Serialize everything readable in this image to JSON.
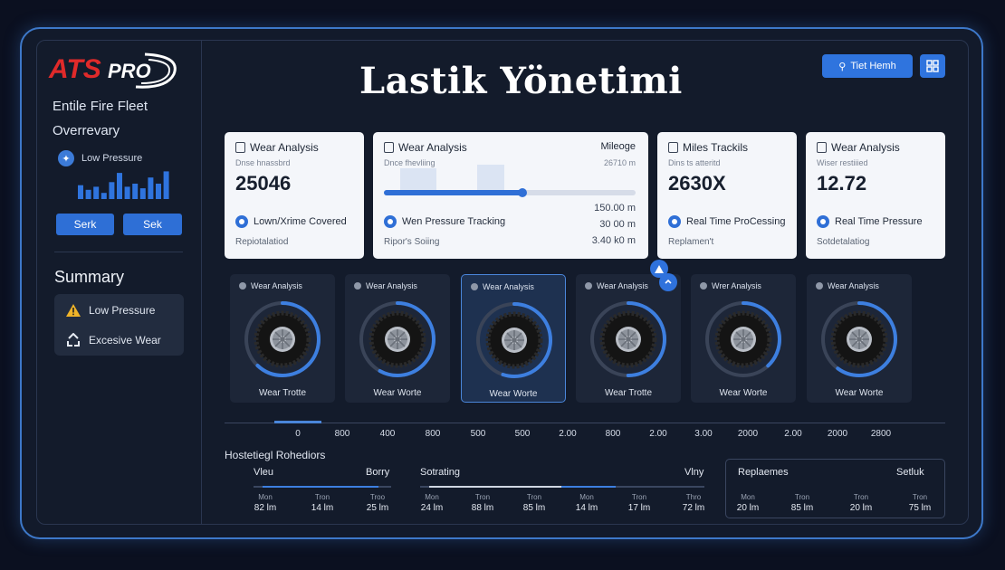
{
  "header": {
    "title": "Lastik Yönetimi",
    "search_button": "Tiet Hemh",
    "logo_text": "ATSPRO"
  },
  "sidebar": {
    "fleet_label": "Entile Fire Fleet",
    "overview_label": "Overrevary",
    "low_pressure_label": "Low Pressure",
    "mini_chart": [
      0.45,
      0.3,
      0.4,
      0.2,
      0.55,
      0.85,
      0.4,
      0.5,
      0.35,
      0.7,
      0.5,
      0.9
    ],
    "button_left": "Serk",
    "button_right": "Sek",
    "summary_title": "Summary",
    "summary_items": [
      "Low Pressure",
      "Excesive Wear"
    ]
  },
  "cards": [
    {
      "title": "Wear Analysis",
      "sub": "Dnse hnassbrd",
      "value": "25046",
      "feature": "Lown/Xrime Covered",
      "foot": "Repiotalatiod"
    },
    {
      "title": "Wear Analysis",
      "right_title": "Mileoge",
      "sub": "Dnce fhevliing",
      "right_sub": "26710 m",
      "feature": "Wen Pressure Tracking",
      "foot": "Ripor's Soiing",
      "values": [
        "150.00 m",
        "30 00 m",
        "3.40 k0 m"
      ],
      "progress": 0.55
    },
    {
      "title": "Miles Trackils",
      "sub": "Dins ts atteritd",
      "value": "2630X",
      "feature": "Real Time ProCessing",
      "foot": "Replamen't"
    },
    {
      "title": "Wear Analysis",
      "sub": "Wiser restiiied",
      "value": "12.72",
      "feature": "Real Time Pressure",
      "foot": "Sotdetalatiog"
    }
  ],
  "tires": [
    {
      "title": "Wear Analysis",
      "foot": "Wear Trotte",
      "level": 0.62
    },
    {
      "title": "Wear Analysis",
      "foot": "Wear Worte",
      "level": 0.58
    },
    {
      "title": "Wear Analysis",
      "foot": "Wear Worte",
      "level": 0.55
    },
    {
      "title": "Wear Analysis",
      "foot": "Wear Trotte",
      "level": 0.5
    },
    {
      "title": "Wrer Analysis",
      "foot": "Wear Worte",
      "level": 0.38
    },
    {
      "title": "Wear Analysis",
      "foot": "Wear Worte",
      "level": 0.6
    }
  ],
  "scale": {
    "ticks": [
      "0",
      "800",
      "400",
      "800",
      "500",
      "500",
      "2.00",
      "800",
      "2.00",
      "3.00",
      "2000",
      "2.00",
      "2000",
      "2800"
    ]
  },
  "history": {
    "title": "Hostetiegl Rohediors",
    "panel1": {
      "left": "Vleu",
      "right": "Borry",
      "heads": [
        "Mon",
        "Tron",
        "Troo"
      ],
      "vals": [
        "82 lm",
        "14 lm",
        "25 lm"
      ]
    },
    "panel2": {
      "left": "Sotrating",
      "right": "Vlny",
      "heads": [
        "Mon",
        "Tron",
        "Tron",
        "Mon",
        "Tron",
        "Thro"
      ],
      "vals": [
        "24 lm",
        "88 lm",
        "85 lm",
        "14 lm",
        "17 lm",
        "72 lm"
      ]
    },
    "panel3": {
      "left": "Replaemes",
      "right": "Setluk",
      "heads": [
        "Mon",
        "Tron",
        "Tron",
        "Tron"
      ],
      "vals": [
        "20 lm",
        "85 lm",
        "20 lm",
        "75 lm"
      ]
    }
  },
  "colors": {
    "accent": "#2f74de",
    "warning": "#f0b429"
  }
}
